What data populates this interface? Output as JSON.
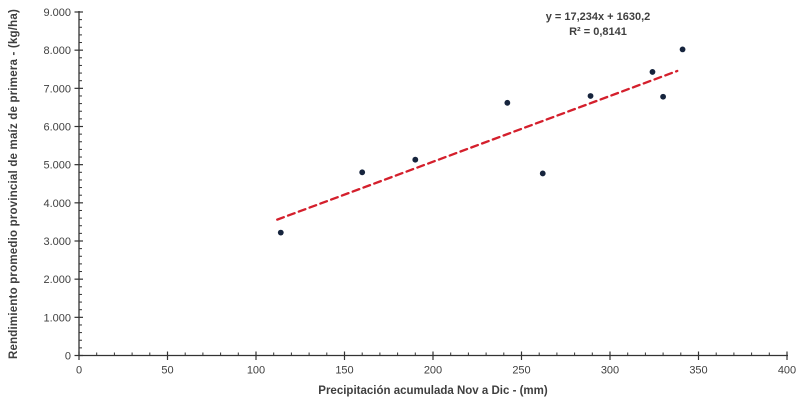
{
  "chart_data": {
    "type": "scatter",
    "title": "",
    "xlabel": "Precipitación acumulada Nov a Dic - (mm)",
    "ylabel": "Rendimiento promedio provincial de maíz de primera - (kg/ha)",
    "xlim": [
      0,
      400
    ],
    "ylim": [
      0,
      9000
    ],
    "x_major_step": 50,
    "x_minor_step": 10,
    "y_major_step": 1000,
    "y_minor_step": 200,
    "x_tick_labels": [
      "0",
      "50",
      "100",
      "150",
      "200",
      "250",
      "300",
      "350",
      "400"
    ],
    "y_tick_labels": [
      "0",
      "1.000",
      "2.000",
      "3.000",
      "4.000",
      "5.000",
      "6.000",
      "7.000",
      "8.000",
      "9.000"
    ],
    "grid": false,
    "legend_position": "none",
    "points": [
      {
        "x": 114,
        "y": 3220
      },
      {
        "x": 160,
        "y": 4800
      },
      {
        "x": 190,
        "y": 5130
      },
      {
        "x": 242,
        "y": 6620
      },
      {
        "x": 262,
        "y": 4770
      },
      {
        "x": 289,
        "y": 6800
      },
      {
        "x": 324,
        "y": 7430
      },
      {
        "x": 330,
        "y": 6780
      },
      {
        "x": 341,
        "y": 8020
      }
    ],
    "trendline": {
      "equation": "y = 17,234x + 1630,2",
      "r_squared": "R² = 0,8141",
      "slope": 17.234,
      "intercept": 1630.2,
      "x_start": 112,
      "x_end": 338,
      "style": "dashed"
    },
    "colors": {
      "marker": "#16243d",
      "trendline": "#d41f2c",
      "axis": "#333333",
      "text": "#3f3f3f",
      "background": "#ffffff"
    }
  }
}
